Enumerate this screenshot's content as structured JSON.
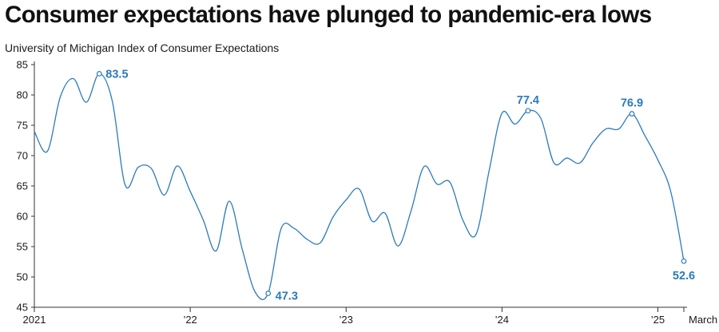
{
  "title": "Consumer expectations have plunged to pandemic-era lows",
  "subtitle": "University of Michigan Index of Consumer Expectations",
  "colors": {
    "line": "#2b7bb9",
    "axis": "#333333",
    "grid": "#cccccc",
    "text": "#1a1a1a"
  },
  "chart_data": {
    "type": "line",
    "title": "Consumer expectations have plunged to pandemic-era lows",
    "ylabel": "University of Michigan Index of Consumer Expectations",
    "xlabel": "",
    "ylim": [
      45,
      85
    ],
    "yticks": [
      45,
      50,
      55,
      60,
      65,
      70,
      75,
      80,
      85
    ],
    "xlim": [
      0,
      50
    ],
    "xticks": [
      {
        "x": 0,
        "label": "2021"
      },
      {
        "x": 12,
        "label": "’22"
      },
      {
        "x": 24,
        "label": "’23"
      },
      {
        "x": 36,
        "label": "’24"
      },
      {
        "x": 48,
        "label": "’25"
      },
      {
        "x": 50,
        "label": "March"
      }
    ],
    "series": [
      {
        "name": "Index of Consumer Expectations",
        "x": [
          0,
          1,
          2,
          3,
          4,
          5,
          6,
          7,
          8,
          9,
          10,
          11,
          12,
          13,
          14,
          15,
          16,
          17,
          18,
          19,
          20,
          21,
          22,
          23,
          24,
          25,
          26,
          27,
          28,
          29,
          30,
          31,
          32,
          33,
          34,
          35,
          36,
          37,
          38,
          39,
          40,
          41,
          42,
          43,
          44,
          45,
          46,
          47,
          48,
          49,
          50
        ],
        "values": [
          74.0,
          70.7,
          79.7,
          82.7,
          78.8,
          83.5,
          79.0,
          65.1,
          68.1,
          67.9,
          63.5,
          68.3,
          64.1,
          59.4,
          54.3,
          62.5,
          54.6,
          47.5,
          47.3,
          58.0,
          58.0,
          56.2,
          55.6,
          59.9,
          62.7,
          64.5,
          59.2,
          60.5,
          55.1,
          60.9,
          68.2,
          65.3,
          65.6,
          59.3,
          57.0,
          67.4,
          77.0,
          75.2,
          77.4,
          76.1,
          68.8,
          69.6,
          68.8,
          72.1,
          74.4,
          74.4,
          76.9,
          73.3,
          69.3,
          64.0,
          52.6
        ]
      }
    ],
    "annotations": [
      {
        "x": 5,
        "y": 83.5,
        "label": "83.5"
      },
      {
        "x": 18,
        "y": 47.3,
        "label": "47.3"
      },
      {
        "x": 38,
        "y": 77.4,
        "label": "77.4"
      },
      {
        "x": 46,
        "y": 76.9,
        "label": "76.9"
      },
      {
        "x": 50,
        "y": 52.6,
        "label": "52.6"
      }
    ]
  }
}
